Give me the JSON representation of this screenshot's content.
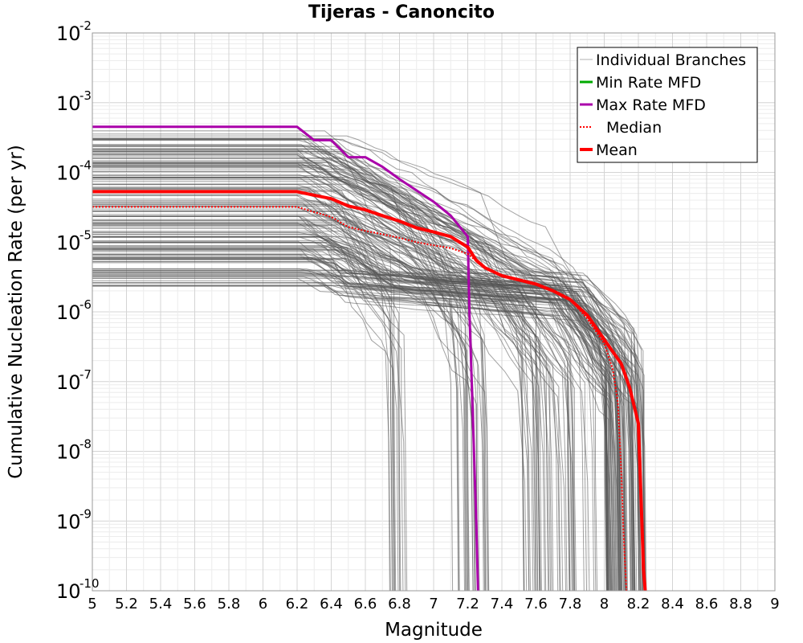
{
  "chart_data": {
    "type": "line",
    "title": "Tijeras - Canoncito",
    "xlabel": "Magnitude",
    "ylabel": "Cumulative Nucleation Rate (per yr)",
    "xlim": [
      5,
      9
    ],
    "ylim": [
      1e-10,
      0.01
    ],
    "yscale": "log",
    "grid": true,
    "legend_position": "top-right",
    "x_ticks": [
      "5",
      "5.2",
      "5.4",
      "5.6",
      "5.8",
      "6",
      "6.2",
      "6.4",
      "6.6",
      "6.8",
      "7",
      "7.2",
      "7.4",
      "7.6",
      "7.8",
      "8",
      "8.2",
      "8.4",
      "8.6",
      "8.8",
      "9"
    ],
    "y_ticks": [
      {
        "base": "10",
        "exp": "-2",
        "value": 0.01
      },
      {
        "base": "10",
        "exp": "-3",
        "value": 0.001
      },
      {
        "base": "10",
        "exp": "-4",
        "value": 0.0001
      },
      {
        "base": "10",
        "exp": "-5",
        "value": 1e-05
      },
      {
        "base": "10",
        "exp": "-6",
        "value": 1e-06
      },
      {
        "base": "10",
        "exp": "-7",
        "value": 1e-07
      },
      {
        "base": "10",
        "exp": "-8",
        "value": 1e-08
      },
      {
        "base": "10",
        "exp": "-9",
        "value": 1e-09
      },
      {
        "base": "10",
        "exp": "-10",
        "value": 1e-10
      }
    ],
    "legend": [
      {
        "label": "Individual Branches",
        "color": "#b0b0b0",
        "style": "solid-thin"
      },
      {
        "label": "Min Rate MFD",
        "color": "#00aa00",
        "style": "solid"
      },
      {
        "label": "Max Rate MFD",
        "color": "#aa00aa",
        "style": "solid"
      },
      {
        "label": "Median",
        "color": "#ff0000",
        "style": "dotted"
      },
      {
        "label": "Mean",
        "color": "#ff0000",
        "style": "solid-thick"
      }
    ],
    "series": [
      {
        "name": "Max Rate MFD",
        "color": "#aa00aa",
        "x": [
          5.0,
          6.2,
          6.3,
          6.4,
          6.5,
          6.6,
          6.7,
          6.8,
          6.9,
          7.0,
          7.1,
          7.15,
          7.2,
          7.21,
          7.23,
          7.25,
          7.26
        ],
        "y": [
          0.00045,
          0.00045,
          0.00029,
          0.00029,
          0.000165,
          0.000165,
          0.00012,
          8e-05,
          5.5e-05,
          3.8e-05,
          2.4e-05,
          1.7e-05,
          1.2e-05,
          1e-06,
          3e-08,
          1e-09,
          1e-10
        ]
      },
      {
        "name": "Median",
        "color": "#ff0000",
        "x": [
          5.0,
          6.2,
          6.3,
          6.4,
          6.5,
          6.6,
          6.7,
          6.8,
          6.9,
          7.0,
          7.1,
          7.2,
          7.3,
          7.4,
          7.6,
          7.7,
          7.8,
          7.9,
          8.0,
          8.05,
          8.08,
          8.1,
          8.11,
          8.12,
          8.13
        ],
        "y": [
          3.2e-05,
          3.2e-05,
          2.7e-05,
          2.3e-05,
          1.65e-05,
          1.45e-05,
          1.3e-05,
          1.15e-05,
          1e-05,
          9e-06,
          8.2e-06,
          6.8e-06,
          4.2e-06,
          3.3e-06,
          2.5e-06,
          2e-06,
          1.5e-06,
          8e-07,
          3.5e-07,
          1.5e-07,
          5e-08,
          5e-09,
          1e-09,
          3e-10,
          1e-10
        ]
      },
      {
        "name": "Mean",
        "color": "#ff0000",
        "x": [
          5.0,
          6.2,
          6.3,
          6.4,
          6.5,
          6.6,
          6.7,
          6.8,
          6.9,
          7.0,
          7.1,
          7.2,
          7.25,
          7.3,
          7.4,
          7.6,
          7.7,
          7.8,
          7.9,
          8.0,
          8.1,
          8.15,
          8.2,
          8.22,
          8.23,
          8.24
        ],
        "y": [
          5.3e-05,
          5.3e-05,
          4.7e-05,
          4.2e-05,
          3.3e-05,
          2.9e-05,
          2.4e-05,
          2e-05,
          1.6e-05,
          1.4e-05,
          1.2e-05,
          8.5e-06,
          5.5e-06,
          4.3e-06,
          3.3e-06,
          2.5e-06,
          2e-06,
          1.5e-06,
          9e-07,
          4e-07,
          1.8e-07,
          8e-08,
          2.5e-08,
          1e-09,
          2e-10,
          1e-10
        ]
      }
    ],
    "branch_rate_range": [
      2.3e-06,
      0.0004
    ],
    "branch_count": 180
  }
}
